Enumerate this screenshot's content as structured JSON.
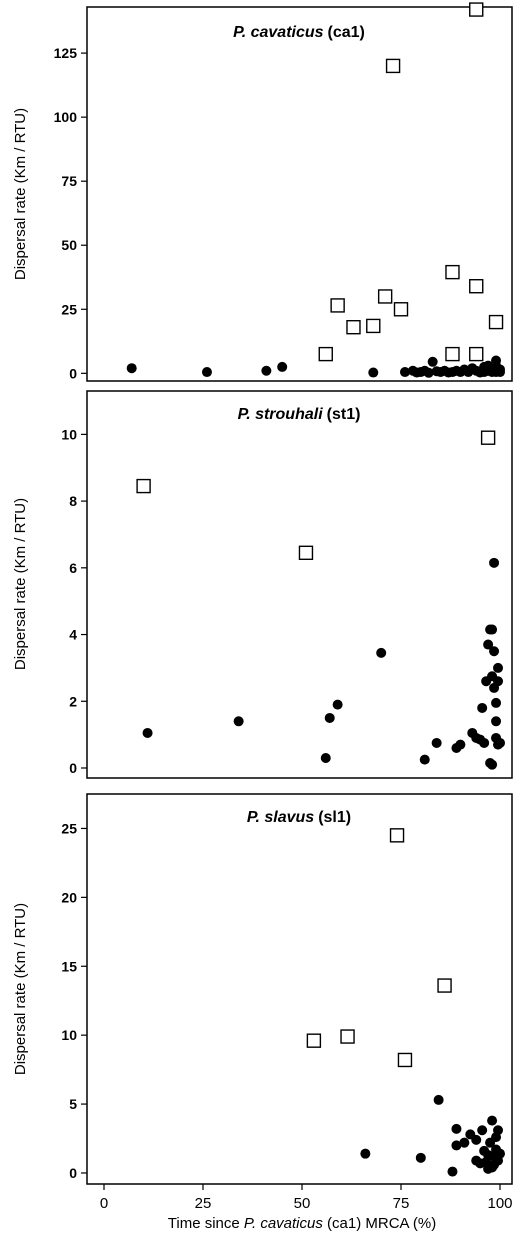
{
  "chart_data": [
    {
      "type": "scatter",
      "title_species": "P. cavaticus",
      "title_suffix": "(ca1)",
      "ylabel": "Dispersal rate (Km / RTU)",
      "xlim": [
        0,
        100
      ],
      "ylim": [
        -3,
        143
      ],
      "yticks": [
        0,
        25,
        50,
        75,
        100,
        125
      ],
      "ytick_labels": [
        "0",
        "25",
        "50",
        "75",
        "100",
        "125"
      ],
      "series": [
        {
          "marker": "open-square",
          "points": [
            [
              94,
              142
            ],
            [
              73,
              120
            ],
            [
              59,
              26.5
            ],
            [
              71,
              30
            ],
            [
              63,
              18
            ],
            [
              68,
              18.5
            ],
            [
              75,
              25
            ],
            [
              56,
              7.5
            ],
            [
              88,
              39.5
            ],
            [
              94,
              34
            ],
            [
              99,
              20
            ],
            [
              88,
              7.5
            ],
            [
              94,
              7.5
            ]
          ]
        },
        {
          "marker": "filled-circle",
          "points": [
            [
              7,
              2
            ],
            [
              26,
              0.5
            ],
            [
              41,
              1
            ],
            [
              45,
              2.5
            ],
            [
              68,
              0.3
            ],
            [
              76,
              0.5
            ],
            [
              78,
              1
            ],
            [
              79,
              0.3
            ],
            [
              80,
              0.5
            ],
            [
              81,
              1
            ],
            [
              82,
              0.2
            ],
            [
              83,
              4.5
            ],
            [
              84,
              0.8
            ],
            [
              85,
              0.5
            ],
            [
              86,
              1
            ],
            [
              87,
              0.3
            ],
            [
              88,
              0.5
            ],
            [
              89,
              1
            ],
            [
              90,
              0.5
            ],
            [
              91,
              1.5
            ],
            [
              92,
              0.5
            ],
            [
              93,
              2
            ],
            [
              94,
              1
            ],
            [
              95,
              0.3
            ],
            [
              96,
              0.5
            ],
            [
              96,
              2.5
            ],
            [
              97,
              1
            ],
            [
              97,
              3
            ],
            [
              98,
              0.5
            ],
            [
              98,
              1.5
            ],
            [
              98,
              2
            ],
            [
              99,
              0.5
            ],
            [
              99,
              1
            ],
            [
              99,
              3
            ],
            [
              99,
              5
            ],
            [
              100,
              1.5
            ],
            [
              100,
              0.5
            ]
          ]
        }
      ]
    },
    {
      "type": "scatter",
      "title_species": "P. strouhali",
      "title_suffix": "(st1)",
      "ylabel": "Dispersal rate (Km / RTU)",
      "xlim": [
        0,
        100
      ],
      "ylim": [
        -0.3,
        11.3
      ],
      "yticks": [
        0,
        2,
        4,
        6,
        8,
        10
      ],
      "ytick_labels": [
        "0",
        "2",
        "4",
        "6",
        "8",
        "10"
      ],
      "series": [
        {
          "marker": "open-square",
          "points": [
            [
              10,
              8.45
            ],
            [
              51,
              6.45
            ],
            [
              97,
              9.9
            ]
          ]
        },
        {
          "marker": "filled-circle",
          "points": [
            [
              11,
              1.05
            ],
            [
              34,
              1.4
            ],
            [
              56,
              0.3
            ],
            [
              57,
              1.5
            ],
            [
              59,
              1.9
            ],
            [
              70,
              3.45
            ],
            [
              81,
              0.25
            ],
            [
              84,
              0.75
            ],
            [
              89,
              0.6
            ],
            [
              90,
              0.7
            ],
            [
              93,
              1.05
            ],
            [
              94,
              0.9
            ],
            [
              95,
              0.85
            ],
            [
              95.5,
              1.8
            ],
            [
              96,
              0.75
            ],
            [
              96.5,
              2.6
            ],
            [
              97,
              3.7
            ],
            [
              97.5,
              4.15
            ],
            [
              97.5,
              0.15
            ],
            [
              98,
              0.1
            ],
            [
              98,
              4.15
            ],
            [
              98,
              2.75
            ],
            [
              98.5,
              3.5
            ],
            [
              98.5,
              2.4
            ],
            [
              98.5,
              6.15
            ],
            [
              99,
              1.95
            ],
            [
              99,
              0.9
            ],
            [
              99,
              1.4
            ],
            [
              99.5,
              2.6
            ],
            [
              99.5,
              3.0
            ],
            [
              99.5,
              0.7
            ],
            [
              100,
              0.75
            ]
          ]
        }
      ]
    },
    {
      "type": "scatter",
      "title_species": "P. slavus",
      "title_suffix": "(sl1)",
      "ylabel": "Dispersal rate (Km / RTU)",
      "xlabel_pre": "Time since ",
      "xlabel_species": "P. cavaticus",
      "xlabel_post": " (ca1) MRCA (%)",
      "xlim": [
        0,
        100
      ],
      "ylim": [
        -0.8,
        27.5
      ],
      "yticks": [
        0,
        5,
        10,
        15,
        20,
        25
      ],
      "ytick_labels": [
        "0",
        "5",
        "10",
        "15",
        "20",
        "25"
      ],
      "xticks": [
        0,
        25,
        50,
        75,
        100
      ],
      "xtick_labels": [
        "0",
        "25",
        "50",
        "75",
        "100"
      ],
      "series": [
        {
          "marker": "open-square",
          "points": [
            [
              74,
              24.5
            ],
            [
              86,
              13.6
            ],
            [
              53,
              9.6
            ],
            [
              61.5,
              9.9
            ],
            [
              76,
              8.2
            ]
          ]
        },
        {
          "marker": "filled-circle",
          "points": [
            [
              66,
              1.4
            ],
            [
              80,
              1.1
            ],
            [
              84.5,
              5.3
            ],
            [
              88,
              0.1
            ],
            [
              89,
              3.2
            ],
            [
              89,
              2.0
            ],
            [
              91,
              2.2
            ],
            [
              92.5,
              2.8
            ],
            [
              94,
              2.4
            ],
            [
              94,
              0.9
            ],
            [
              95,
              0.7
            ],
            [
              95.5,
              3.1
            ],
            [
              96,
              1.6
            ],
            [
              96.5,
              0.8
            ],
            [
              97,
              0.3
            ],
            [
              97,
              1.3
            ],
            [
              97.5,
              2.2
            ],
            [
              98,
              3.8
            ],
            [
              98,
              0.4
            ],
            [
              98.5,
              1.2
            ],
            [
              98.5,
              0.6
            ],
            [
              99,
              2.6
            ],
            [
              99,
              1.7
            ],
            [
              99.5,
              0.9
            ],
            [
              99.5,
              3.1
            ],
            [
              100,
              1.4
            ]
          ]
        }
      ]
    }
  ]
}
